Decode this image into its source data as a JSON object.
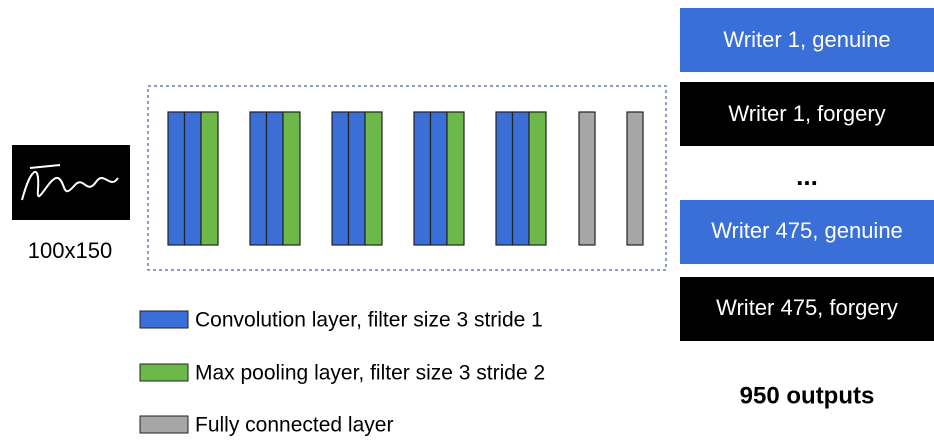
{
  "input": {
    "size": "100x150"
  },
  "legend": [
    "Convolution layer, filter size 3 stride 1",
    "Max pooling layer, filter size 3 stride 2",
    "Fully connected layer"
  ],
  "outputs": {
    "boxes": [
      "Writer 1, genuine",
      "Writer 1, forgery",
      "Writer 475, genuine",
      "Writer 475, forgery"
    ],
    "ellipsis": "...",
    "total": "950 outputs"
  }
}
